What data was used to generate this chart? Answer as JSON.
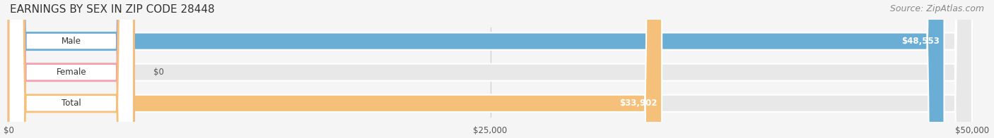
{
  "title": "EARNINGS BY SEX IN ZIP CODE 28448",
  "source": "Source: ZipAtlas.com",
  "categories": [
    "Male",
    "Female",
    "Total"
  ],
  "values": [
    48553,
    0,
    33902
  ],
  "max_value": 50000,
  "bar_colors": [
    "#6aaed6",
    "#f4a0b0",
    "#f5c07a"
  ],
  "label_colors": [
    "#6aaed6",
    "#f4a0b0",
    "#f5c07a"
  ],
  "value_labels": [
    "$48,553",
    "$0",
    "$33,902"
  ],
  "xticks": [
    0,
    25000,
    50000
  ],
  "xtick_labels": [
    "$0",
    "$25,000",
    "$50,000"
  ],
  "bg_color": "#f5f5f5",
  "bar_bg_color": "#e8e8e8",
  "title_fontsize": 11,
  "source_fontsize": 9,
  "bar_height": 0.55,
  "bar_gap": 0.15
}
